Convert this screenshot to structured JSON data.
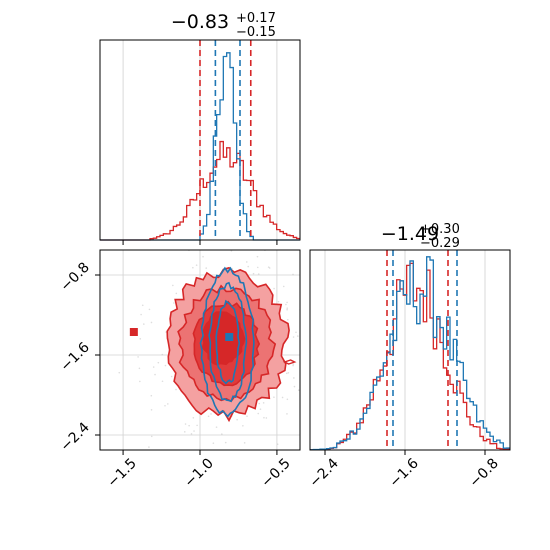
{
  "colors": {
    "red": "#d62728",
    "blue": "#1f77b4",
    "red_fill_light": "#f4a1a1",
    "red_fill_dark": "#e03b3b",
    "grid": "#d0d0d0"
  },
  "chart_data": [
    {
      "type": "histogram",
      "panel": "top-left",
      "title": {
        "value": "−0.83",
        "plus": "+0.17",
        "minus": "−0.15"
      },
      "xlim": [
        -1.65,
        -0.35
      ],
      "x_ticks": [
        -1.5,
        -1.0,
        -0.5
      ],
      "grid": true,
      "quantile_lines": {
        "red": [
          -1.0,
          -0.67
        ],
        "blue": [
          -0.9,
          -0.74
        ]
      },
      "series": [
        {
          "color": "red",
          "center": -0.83,
          "sigma": 0.17
        },
        {
          "color": "blue",
          "center": -0.83,
          "sigma": 0.06
        }
      ]
    },
    {
      "type": "histogram",
      "panel": "bottom-right",
      "title": {
        "value": "−1.49",
        "plus": "+0.30",
        "minus": "−0.29"
      },
      "xlim": [
        -2.55,
        -0.55
      ],
      "x_ticks": [
        "−2.4",
        "−1.6",
        "−0.8"
      ],
      "x_tick_values": [
        -2.4,
        -1.6,
        -0.8
      ],
      "grid": true,
      "quantile_lines": {
        "red": [
          -1.78,
          -1.17
        ],
        "blue": [
          -1.72,
          -1.08
        ]
      },
      "series": [
        {
          "color": "red",
          "center": -1.49,
          "sigma": 0.3
        },
        {
          "color": "blue",
          "center": -1.45,
          "sigma": 0.32
        }
      ]
    },
    {
      "type": "contour",
      "panel": "bottom-left",
      "xlim": [
        -1.65,
        -0.35
      ],
      "ylim": [
        -2.55,
        -0.55
      ],
      "x_ticks": [
        "−1.5",
        "−1.0",
        "−0.5"
      ],
      "x_tick_values": [
        -1.5,
        -1.0,
        -0.5
      ],
      "y_ticks": [
        "−0.8",
        "−1.6",
        "−2.4"
      ],
      "y_tick_values": [
        -0.8,
        -1.6,
        -2.4
      ],
      "grid": true,
      "markers": [
        {
          "color": "red",
          "x": -1.43,
          "y": -1.37
        },
        {
          "color": "red",
          "x": -0.83,
          "y": -1.47
        },
        {
          "color": "blue",
          "x": -0.81,
          "y": -1.42
        }
      ],
      "red_center": [
        -0.83,
        -1.49
      ],
      "blue_center": [
        -0.82,
        -1.48
      ]
    }
  ]
}
